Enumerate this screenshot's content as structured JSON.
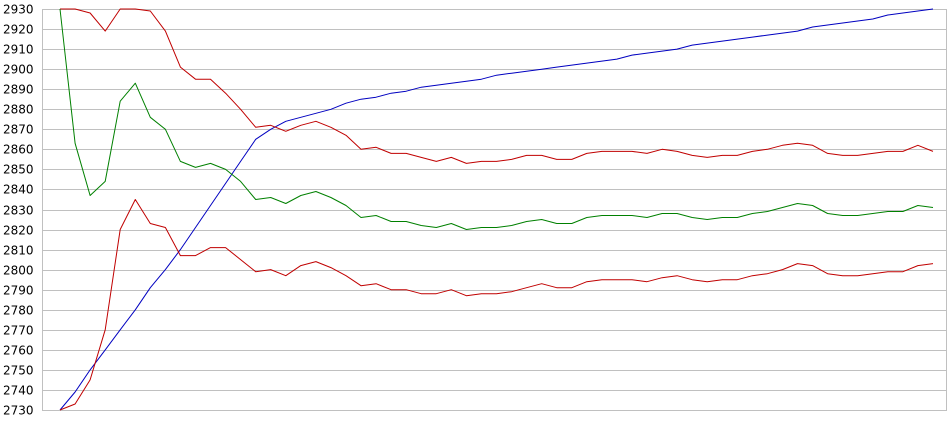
{
  "chart_data": {
    "type": "line",
    "title": "",
    "xlabel": "",
    "ylabel": "",
    "ylim": [
      2730,
      2930
    ],
    "yticks": [
      2730,
      2740,
      2750,
      2760,
      2770,
      2780,
      2790,
      2800,
      2810,
      2820,
      2830,
      2840,
      2850,
      2860,
      2870,
      2880,
      2890,
      2900,
      2910,
      2920,
      2930
    ],
    "grid": true,
    "legend": "none",
    "xlim": [
      0,
      58
    ],
    "x": [
      0,
      1,
      2,
      3,
      4,
      5,
      6,
      7,
      8,
      9,
      10,
      11,
      12,
      13,
      14,
      15,
      16,
      17,
      18,
      19,
      20,
      21,
      22,
      23,
      24,
      25,
      26,
      27,
      28,
      29,
      30,
      31,
      32,
      33,
      34,
      35,
      36,
      37,
      38,
      39,
      40,
      41,
      42,
      43,
      44,
      45,
      46,
      47,
      48,
      49,
      50,
      51,
      52,
      53,
      54,
      55,
      56,
      57,
      58
    ],
    "series": [
      {
        "color": "#0000c0",
        "values": [
          2730,
          2739,
          2750,
          2760,
          2770,
          2780,
          2791,
          2800,
          2810,
          2821,
          2832,
          2843,
          2854,
          2865,
          2870,
          2874,
          2876,
          2878,
          2880,
          2883,
          2885,
          2886,
          2888,
          2889,
          2891,
          2892,
          2893,
          2894,
          2895,
          2897,
          2898,
          2899,
          2900,
          2901,
          2902,
          2903,
          2904,
          2905,
          2907,
          2908,
          2909,
          2910,
          2912,
          2913,
          2914,
          2915,
          2916,
          2917,
          2918,
          2919,
          2921,
          2922,
          2923,
          2924,
          2925,
          2927,
          2928,
          2929,
          2930
        ]
      },
      {
        "color": "#c00000",
        "values": [
          2930,
          2930,
          2928,
          2919,
          2930,
          2930,
          2929,
          2919,
          2901,
          2895,
          2895,
          2888,
          2880,
          2871,
          2872,
          2869,
          2872,
          2874,
          2871,
          2867,
          2860,
          2861,
          2858,
          2858,
          2856,
          2854,
          2856,
          2853,
          2854,
          2854,
          2855,
          2857,
          2857,
          2855,
          2855,
          2858,
          2859,
          2859,
          2859,
          2858,
          2860,
          2859,
          2857,
          2856,
          2857,
          2857,
          2859,
          2860,
          2862,
          2863,
          2862,
          2858,
          2857,
          2857,
          2858,
          2859,
          2859,
          2862,
          2859
        ]
      },
      {
        "color": "#008000",
        "values": [
          2930,
          2863,
          2837,
          2844,
          2884,
          2893,
          2876,
          2870,
          2854,
          2851,
          2853,
          2850,
          2844,
          2835,
          2836,
          2833,
          2837,
          2839,
          2836,
          2832,
          2826,
          2827,
          2824,
          2824,
          2822,
          2821,
          2823,
          2820,
          2821,
          2821,
          2822,
          2824,
          2825,
          2823,
          2823,
          2826,
          2827,
          2827,
          2827,
          2826,
          2828,
          2828,
          2826,
          2825,
          2826,
          2826,
          2828,
          2829,
          2831,
          2833,
          2832,
          2828,
          2827,
          2827,
          2828,
          2829,
          2829,
          2832,
          2831
        ]
      },
      {
        "color": "#c00000",
        "values": [
          2730,
          2733,
          2745,
          2770,
          2820,
          2835,
          2823,
          2821,
          2807,
          2807,
          2811,
          2811,
          2805,
          2799,
          2800,
          2797,
          2802,
          2804,
          2801,
          2797,
          2792,
          2793,
          2790,
          2790,
          2788,
          2788,
          2790,
          2787,
          2788,
          2788,
          2789,
          2791,
          2793,
          2791,
          2791,
          2794,
          2795,
          2795,
          2795,
          2794,
          2796,
          2797,
          2795,
          2794,
          2795,
          2795,
          2797,
          2798,
          2800,
          2803,
          2802,
          2798,
          2797,
          2797,
          2798,
          2799,
          2799,
          2802,
          2803
        ]
      }
    ]
  }
}
